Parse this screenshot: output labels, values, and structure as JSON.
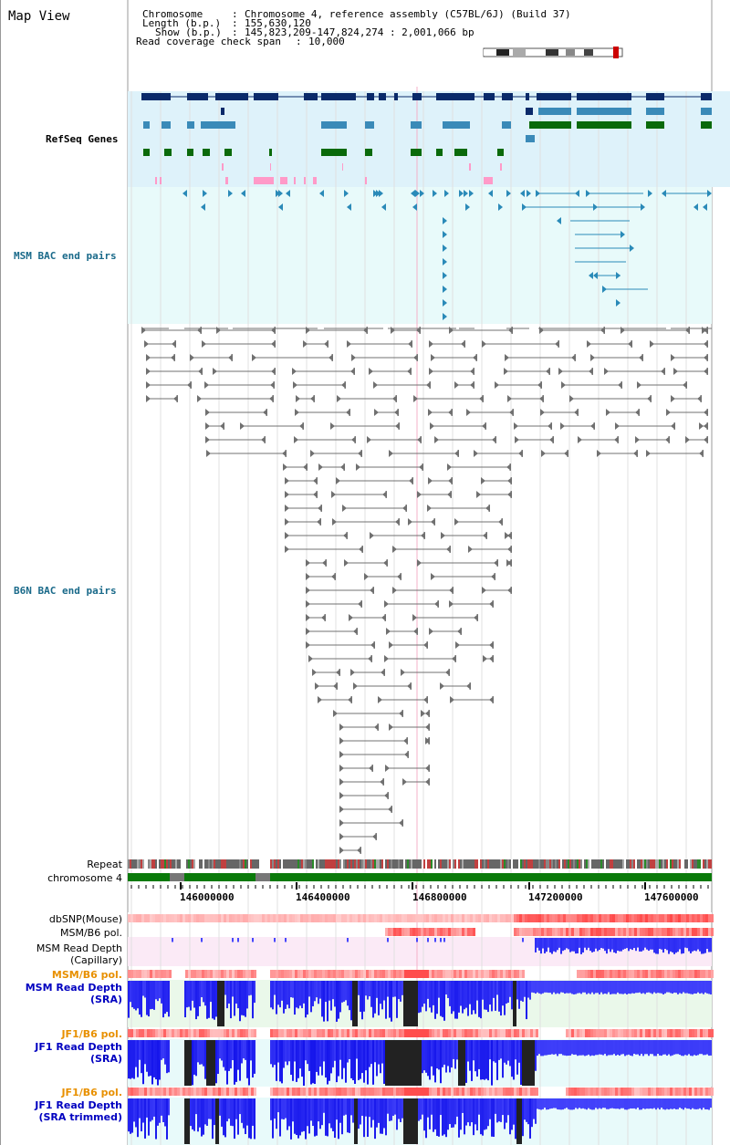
{
  "window": {
    "title": "Map View"
  },
  "header": {
    "chromosome_key": "Chromosome",
    "chromosome_value": "Chromosome 4, reference assembly (C57BL/6J) (Build 37)",
    "length_key": "Length (b.p.)",
    "length_value": "155,630,120",
    "show_key": "Show (b.p.)",
    "show_value": "145,823,209-147,824,274 : 2,001,066 bp",
    "coverage_key": "Read coverage check span",
    "coverage_value": "10,000"
  },
  "tracks": {
    "refseq": {
      "label": "RefSeq Genes",
      "color": "#1a1aa0"
    },
    "msm_bac": {
      "label": "MSM BAC end pairs",
      "color": "#1a6a8a"
    },
    "b6n_bac": {
      "label": "B6N BAC end pairs",
      "color": "#1a6a8a"
    },
    "repeat": {
      "label": "Repeat"
    },
    "chromosome": {
      "label": "chromosome 4"
    },
    "dbsnp": {
      "label": "dbSNP(Mouse)"
    },
    "msm_b6_pol_1": {
      "label": "MSM/B6 pol."
    },
    "msm_capillary": {
      "label_1": "MSM Read Depth",
      "label_2": "(Capillary)"
    },
    "msm_b6_pol_2": {
      "label": "MSM/B6 pol."
    },
    "msm_sra": {
      "label_1": "MSM Read Depth",
      "label_2": "(SRA)"
    },
    "jf1_b6_pol_1": {
      "label": "JF1/B6 pol."
    },
    "jf1_sra": {
      "label_1": "JF1 Read Depth",
      "label_2": "(SRA)"
    },
    "jf1_b6_pol_2": {
      "label": "JF1/B6 pol."
    },
    "jf1_sra_trimmed": {
      "label_1": "JF1 Read Depth",
      "label_2": "(SRA trimmed)"
    }
  },
  "axis": {
    "ticks": [
      "146000000",
      "146400000",
      "146800000",
      "147200000",
      "147600000"
    ]
  },
  "colors": {
    "refseq_bg": "#def2fa",
    "msm_bg": "#e8fafa",
    "gene_dark": "#0a2a6a",
    "gene_mid": "#3a8ab8",
    "gene_green": "#0a6a0a",
    "gene_pink": "#ff9ac8",
    "msm_mark": "#2a8ab8",
    "b6n_mark": "#707070",
    "chrom_green": "#0a7a0a",
    "pol_red": "#e83030",
    "depth_blue": "#2020f0",
    "orange_label": "#e89000",
    "blue_label": "#0000c0"
  }
}
